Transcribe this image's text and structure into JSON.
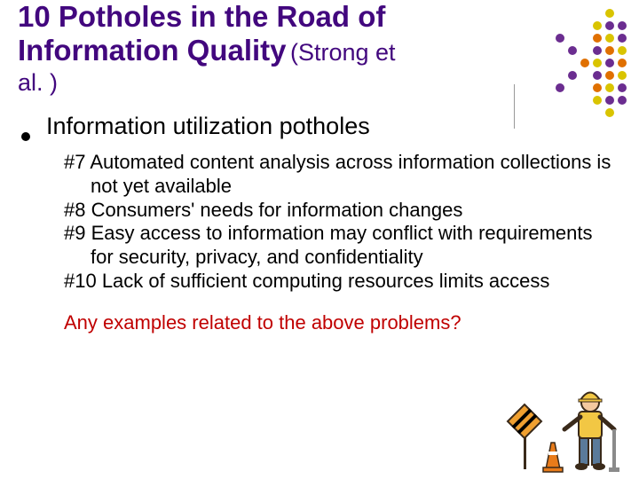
{
  "title": {
    "main": "10 Potholes in the Road of Information Quality",
    "sub": "(Strong et",
    "al": "al. )",
    "color": "#42077e",
    "main_fontsize": 33,
    "sub_fontsize": 27
  },
  "subtitle": {
    "text": "Information utilization potholes",
    "fontsize": 27,
    "color": "#000000"
  },
  "items": [
    "#7 Automated content analysis across information collections is not yet available",
    "#8 Consumers' needs for information changes",
    "#9 Easy access to information may conflict with requirements for security, privacy, and confidentiality",
    "#10 Lack of sufficient computing resources limits access"
  ],
  "items_style": {
    "fontsize": 22,
    "color": "#000000",
    "line_height": 1.22
  },
  "question": {
    "text": "Any examples related to the above problems?",
    "color": "#c00000",
    "fontsize": 22
  },
  "dot_grid": {
    "cols": 8,
    "rows": 9,
    "colors": {
      "purple": "#6b2d90",
      "yellow": "#d9c400",
      "orange": "#e07000",
      "none": "transparent"
    },
    "cells": [
      [
        "none",
        "none",
        "none",
        "none",
        "none",
        "none",
        "yellow",
        "none"
      ],
      [
        "none",
        "none",
        "none",
        "none",
        "none",
        "yellow",
        "purple",
        "purple"
      ],
      [
        "none",
        "none",
        "purple",
        "none",
        "none",
        "orange",
        "yellow",
        "purple"
      ],
      [
        "none",
        "none",
        "none",
        "purple",
        "none",
        "purple",
        "orange",
        "yellow"
      ],
      [
        "none",
        "none",
        "none",
        "none",
        "orange",
        "yellow",
        "purple",
        "orange"
      ],
      [
        "none",
        "none",
        "none",
        "purple",
        "none",
        "purple",
        "orange",
        "yellow"
      ],
      [
        "none",
        "none",
        "purple",
        "none",
        "none",
        "orange",
        "yellow",
        "purple"
      ],
      [
        "none",
        "none",
        "none",
        "none",
        "none",
        "yellow",
        "purple",
        "purple"
      ],
      [
        "none",
        "none",
        "none",
        "none",
        "none",
        "none",
        "yellow",
        "none"
      ]
    ]
  },
  "clipart": {
    "cone_color": "#e87b1a",
    "cone_stripe": "#ffffff",
    "sign_color": "#f0a030",
    "worker_jacket": "#f2c744",
    "worker_helmet": "#f2c744",
    "worker_face": "#f4c9a0",
    "worker_pants": "#5a7a9a",
    "tool_color": "#8a8a8a",
    "stripe_black": "#000000",
    "outline": "#3a2a1a"
  }
}
